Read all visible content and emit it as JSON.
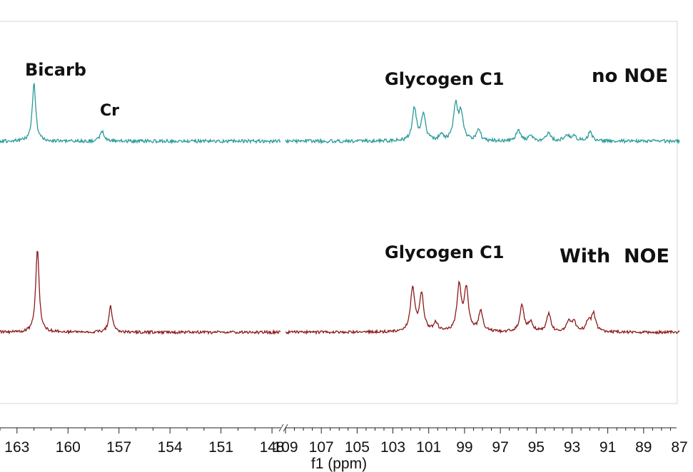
{
  "chart_data": {
    "type": "line",
    "xlabel": "f1 (ppm)",
    "axis_break": true,
    "x_reversed": true,
    "segments": [
      {
        "ticks": [
          163,
          160,
          157,
          154,
          151,
          148
        ],
        "range": [
          164.0,
          147.5
        ]
      },
      {
        "ticks": [
          109,
          107,
          105,
          103,
          101,
          99,
          97,
          95,
          93,
          91,
          89,
          87
        ],
        "range": [
          109.0,
          87.0
        ]
      }
    ],
    "series": [
      {
        "name": "no NOE",
        "color": "#2a9a9a",
        "peaks": [
          {
            "x": 162.0,
            "y": 1.0
          },
          {
            "x": 158.0,
            "y": 0.18
          },
          {
            "x": 101.8,
            "y": 0.55
          },
          {
            "x": 101.3,
            "y": 0.45
          },
          {
            "x": 100.3,
            "y": 0.1
          },
          {
            "x": 99.5,
            "y": 0.6
          },
          {
            "x": 99.2,
            "y": 0.45
          },
          {
            "x": 98.2,
            "y": 0.18
          },
          {
            "x": 96.0,
            "y": 0.18
          },
          {
            "x": 95.3,
            "y": 0.1
          },
          {
            "x": 94.3,
            "y": 0.14
          },
          {
            "x": 93.3,
            "y": 0.12
          },
          {
            "x": 92.9,
            "y": 0.1
          },
          {
            "x": 92.0,
            "y": 0.15
          }
        ]
      },
      {
        "name": "With NOE",
        "color": "#8b1a1a",
        "peaks": [
          {
            "x": 161.8,
            "y": 1.0
          },
          {
            "x": 157.5,
            "y": 0.32
          },
          {
            "x": 101.9,
            "y": 0.52
          },
          {
            "x": 101.4,
            "y": 0.45
          },
          {
            "x": 100.6,
            "y": 0.1
          },
          {
            "x": 99.3,
            "y": 0.55
          },
          {
            "x": 98.9,
            "y": 0.5
          },
          {
            "x": 98.1,
            "y": 0.24
          },
          {
            "x": 95.8,
            "y": 0.32
          },
          {
            "x": 95.3,
            "y": 0.12
          },
          {
            "x": 94.3,
            "y": 0.22
          },
          {
            "x": 93.2,
            "y": 0.12
          },
          {
            "x": 92.9,
            "y": 0.12
          },
          {
            "x": 92.1,
            "y": 0.12
          },
          {
            "x": 91.8,
            "y": 0.22
          }
        ]
      }
    ],
    "annotations": [
      "Bicarb",
      "Cr",
      "Glycogen C1",
      "no NOE",
      "Glycogen C1",
      "With  NOE"
    ]
  }
}
